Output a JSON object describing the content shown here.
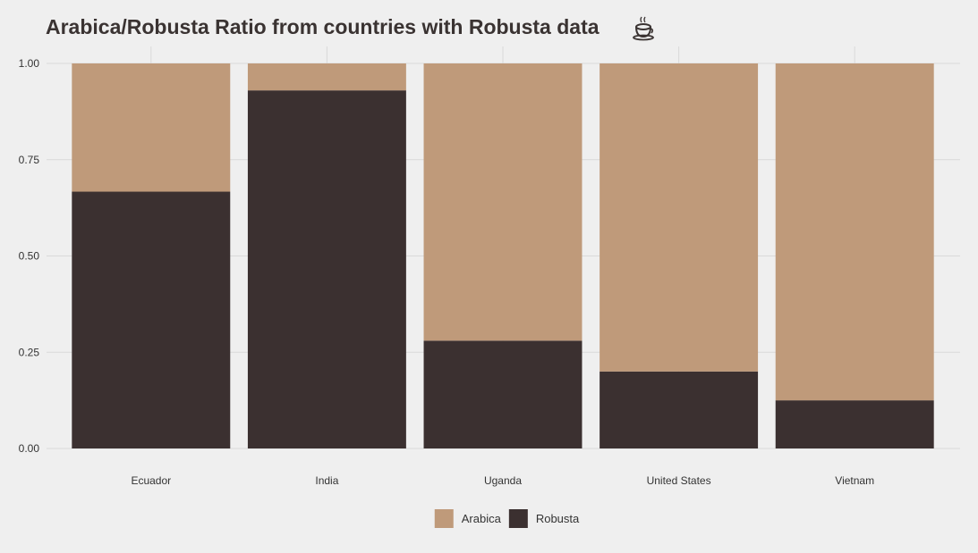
{
  "colors": {
    "background": "#efefef",
    "grid": "#d9d9d9",
    "arabica": "#bf9a7a",
    "robusta": "#3b3030",
    "title": "#3a3332"
  },
  "chart_data": {
    "type": "bar",
    "stacked": true,
    "title": "Arabica/Robusta Ratio from countries with Robusta data",
    "title_icon": "coffee-cup-icon",
    "xlabel": "",
    "ylabel": "",
    "ylim": [
      0,
      1
    ],
    "yticks": [
      "0.00",
      "0.25",
      "0.50",
      "0.75",
      "1.00"
    ],
    "ytick_values": [
      0,
      0.25,
      0.5,
      0.75,
      1.0
    ],
    "categories": [
      "Ecuador",
      "India",
      "Uganda",
      "United States",
      "Vietnam"
    ],
    "series": [
      {
        "name": "Robusta",
        "color": "#3b3030",
        "values": [
          0.667,
          0.93,
          0.28,
          0.2,
          0.125
        ]
      },
      {
        "name": "Arabica",
        "color": "#bf9a7a",
        "values": [
          0.333,
          0.07,
          0.72,
          0.8,
          0.875
        ]
      }
    ],
    "legend": {
      "position": "bottom",
      "entries": [
        "Arabica",
        "Robusta"
      ]
    },
    "grid": true
  }
}
